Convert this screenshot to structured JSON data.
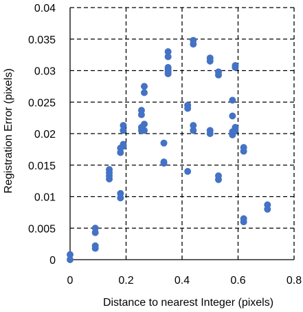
{
  "chart_data": {
    "type": "scatter",
    "title": "",
    "xlabel": "Distance to nearest Integer (pixels)",
    "ylabel": "Registration Error (pixels)",
    "xlim": [
      0,
      0.8
    ],
    "ylim": [
      0,
      0.04
    ],
    "x_ticks": [
      "0",
      "0.2",
      "0.4",
      "0.6",
      "0.8"
    ],
    "y_ticks": [
      "0",
      "0.005",
      "0.01",
      "0.015",
      "0.02",
      "0.025",
      "0.03",
      "0.035",
      "0.04"
    ],
    "grid": "dashed",
    "legend": "none",
    "marker_color": "#4472C4",
    "series": [
      {
        "points": [
          [
            0.0,
            0.0
          ],
          [
            0.0,
            0.0008
          ],
          [
            0.09,
            0.0018
          ],
          [
            0.09,
            0.0022
          ],
          [
            0.09,
            0.0043
          ],
          [
            0.09,
            0.005
          ],
          [
            0.14,
            0.0128
          ],
          [
            0.14,
            0.0133
          ],
          [
            0.14,
            0.0138
          ],
          [
            0.14,
            0.0143
          ],
          [
            0.18,
            0.0098
          ],
          [
            0.18,
            0.0105
          ],
          [
            0.18,
            0.017
          ],
          [
            0.18,
            0.0177
          ],
          [
            0.19,
            0.018
          ],
          [
            0.19,
            0.0183
          ],
          [
            0.19,
            0.0205
          ],
          [
            0.19,
            0.0213
          ],
          [
            0.255,
            0.0205
          ],
          [
            0.255,
            0.021
          ],
          [
            0.255,
            0.023
          ],
          [
            0.255,
            0.0237
          ],
          [
            0.265,
            0.0205
          ],
          [
            0.265,
            0.0215
          ],
          [
            0.265,
            0.0265
          ],
          [
            0.265,
            0.0275
          ],
          [
            0.335,
            0.0153
          ],
          [
            0.335,
            0.0155
          ],
          [
            0.335,
            0.0185
          ],
          [
            0.35,
            0.0295
          ],
          [
            0.35,
            0.0298
          ],
          [
            0.35,
            0.0302
          ],
          [
            0.35,
            0.0305
          ],
          [
            0.35,
            0.0322
          ],
          [
            0.35,
            0.033
          ],
          [
            0.42,
            0.014
          ],
          [
            0.42,
            0.024
          ],
          [
            0.42,
            0.0245
          ],
          [
            0.44,
            0.0205
          ],
          [
            0.44,
            0.0213
          ],
          [
            0.44,
            0.0342
          ],
          [
            0.44,
            0.0348
          ],
          [
            0.5,
            0.02
          ],
          [
            0.5,
            0.0205
          ],
          [
            0.5,
            0.0315
          ],
          [
            0.5,
            0.032
          ],
          [
            0.53,
            0.0127
          ],
          [
            0.53,
            0.0133
          ],
          [
            0.53,
            0.0293
          ],
          [
            0.53,
            0.0298
          ],
          [
            0.58,
            0.0228
          ],
          [
            0.58,
            0.0253
          ],
          [
            0.58,
            0.0198
          ],
          [
            0.58,
            0.0203
          ],
          [
            0.59,
            0.0205
          ],
          [
            0.59,
            0.021
          ],
          [
            0.59,
            0.0305
          ],
          [
            0.59,
            0.0308
          ],
          [
            0.62,
            0.006
          ],
          [
            0.62,
            0.0065
          ],
          [
            0.62,
            0.0172
          ],
          [
            0.62,
            0.0178
          ],
          [
            0.705,
            0.008
          ],
          [
            0.705,
            0.0087
          ]
        ]
      }
    ]
  }
}
